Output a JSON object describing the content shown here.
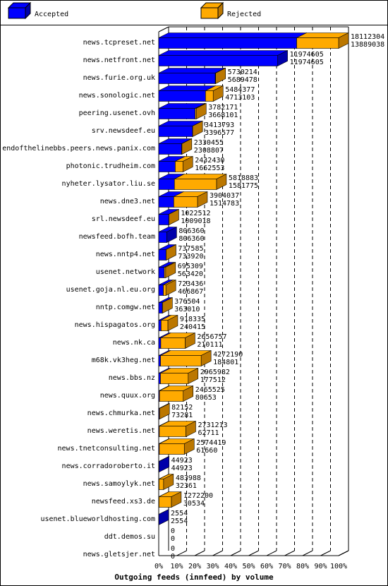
{
  "chart_data": {
    "type": "bar",
    "orientation": "horizontal",
    "style": "3d-stacked",
    "title": "Outgoing feeds (innfeed) by volume",
    "legend": {
      "placement": "top",
      "entries": [
        {
          "name": "Accepted",
          "color": "#0000ff"
        },
        {
          "name": "Rejected",
          "color": "#ffaa00"
        }
      ]
    },
    "x_ticks": [
      "0%",
      "10%",
      "20%",
      "30%",
      "40%",
      "50%",
      "60%",
      "70%",
      "80%",
      "90%",
      "100%"
    ],
    "xlim": [
      0,
      100
    ],
    "grid": true,
    "categories": [
      "news.tcpreset.net",
      "news.netfront.net",
      "news.furie.org.uk",
      "news.sonologic.net",
      "peering.usenet.ovh",
      "srv.newsdeef.eu",
      "endofthelinebbs.peers.news.panix.com",
      "photonic.trudheim.com",
      "nyheter.lysator.liu.se",
      "news.dne3.net",
      "srl.newsdeef.eu",
      "newsfeed.bofh.team",
      "news.nntp4.net",
      "usenet.network",
      "usenet.goja.nl.eu.org",
      "nntp.comgw.net",
      "news.hispagatos.org",
      "news.nk.ca",
      "m68k.vk3heg.net",
      "news.bbs.nz",
      "news.quux.org",
      "news.chmurka.net",
      "news.weretis.net",
      "news.tnetconsulting.net",
      "news.corradoroberto.it",
      "news.samoylyk.net",
      "newsfeed.xs3.de",
      "usenet.blueworldhosting.com",
      "ddt.demos.su",
      "news.gletsjer.net"
    ],
    "offered": [
      18112304,
      11974605,
      5730214,
      5484377,
      3782171,
      3413793,
      2330455,
      2432430,
      5818883,
      3904037,
      1022512,
      806360,
      737585,
      695309,
      723436,
      376504,
      918335,
      2656757,
      4272190,
      2965982,
      2465525,
      82152,
      2731213,
      2574419,
      44923,
      483988,
      1272200,
      2554,
      0,
      0
    ],
    "accepted": [
      13889038,
      11974605,
      5689478,
      4713103,
      3668101,
      3396577,
      2308807,
      1662553,
      1581775,
      1514783,
      1009018,
      806360,
      733920,
      563420,
      466867,
      363010,
      240415,
      210111,
      184801,
      177512,
      80653,
      73281,
      62711,
      61660,
      44923,
      32361,
      30534,
      2554,
      0,
      0
    ],
    "colors": {
      "accepted_front": "#0000ff",
      "accepted_side": "#0000aa",
      "rejected_front": "#ffaa00",
      "rejected_side": "#bb7700",
      "grid": "#000000",
      "frame": "#000000"
    }
  }
}
